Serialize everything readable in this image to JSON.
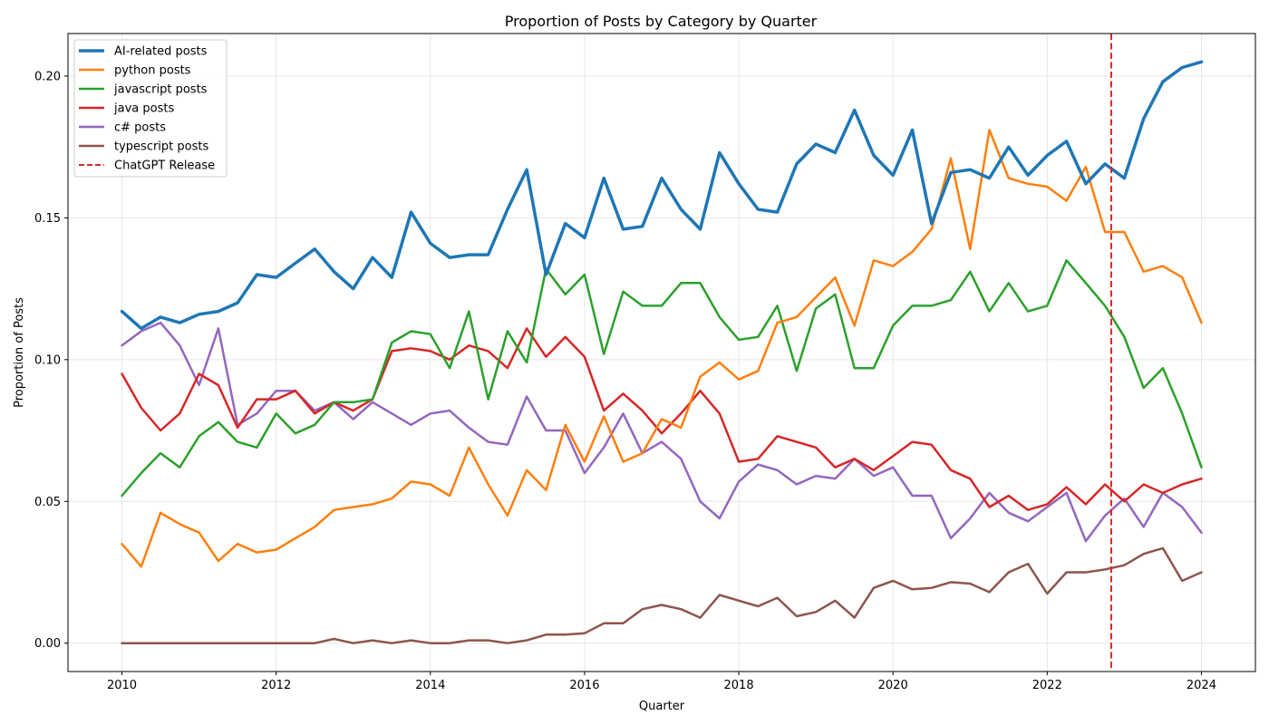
{
  "chart_data": {
    "type": "line",
    "title": "Proportion of Posts by Category by Quarter",
    "xlabel": "Quarter",
    "ylabel": "Proportion of Posts",
    "xlim": [
      2009.3,
      2024.7
    ],
    "ylim": [
      -0.01,
      0.215
    ],
    "x_ticks": [
      2010,
      2012,
      2014,
      2016,
      2018,
      2020,
      2022,
      2024
    ],
    "y_ticks": [
      0.0,
      0.05,
      0.1,
      0.15,
      0.2
    ],
    "y_tick_labels": [
      "0.00",
      "0.05",
      "0.10",
      "0.15",
      "0.20"
    ],
    "grid": true,
    "legend_position": "upper-left",
    "x_start": 2010,
    "x_step": 0.25,
    "series": [
      {
        "name": "AI-related posts",
        "color": "#1f77b4",
        "width": 3.5,
        "values": [
          0.117,
          0.111,
          0.115,
          0.113,
          0.116,
          0.117,
          0.12,
          0.13,
          0.129,
          0.134,
          0.139,
          0.131,
          0.125,
          0.136,
          0.129,
          0.152,
          0.141,
          0.136,
          0.137,
          0.137,
          0.153,
          0.167,
          0.13,
          0.148,
          0.143,
          0.164,
          0.146,
          0.147,
          0.164,
          0.153,
          0.146,
          0.173,
          0.162,
          0.153,
          0.152,
          0.169,
          0.176,
          0.173,
          0.188,
          0.172,
          0.165,
          0.181,
          0.148,
          0.166,
          0.167,
          0.164,
          0.175,
          0.165,
          0.172,
          0.177,
          0.162,
          0.169,
          0.164,
          0.185,
          0.198,
          0.203,
          0.205
        ]
      },
      {
        "name": "python posts",
        "color": "#ff7f0e",
        "width": 2.5,
        "values": [
          0.035,
          0.027,
          0.046,
          0.042,
          0.039,
          0.029,
          0.035,
          0.032,
          0.033,
          0.037,
          0.041,
          0.047,
          0.048,
          0.049,
          0.051,
          0.057,
          0.056,
          0.052,
          0.069,
          0.056,
          0.045,
          0.061,
          0.054,
          0.077,
          0.064,
          0.08,
          0.064,
          0.067,
          0.079,
          0.076,
          0.094,
          0.099,
          0.093,
          0.096,
          0.113,
          0.115,
          0.122,
          0.129,
          0.112,
          0.135,
          0.133,
          0.138,
          0.146,
          0.171,
          0.139,
          0.181,
          0.164,
          0.162,
          0.161,
          0.156,
          0.168,
          0.145,
          0.145,
          0.131,
          0.133,
          0.129,
          0.113
        ]
      },
      {
        "name": "javascript posts",
        "color": "#2ca02c",
        "width": 2.5,
        "values": [
          0.052,
          0.06,
          0.067,
          0.062,
          0.073,
          0.078,
          0.071,
          0.069,
          0.081,
          0.074,
          0.077,
          0.085,
          0.085,
          0.086,
          0.106,
          0.11,
          0.109,
          0.097,
          0.117,
          0.086,
          0.11,
          0.099,
          0.132,
          0.123,
          0.13,
          0.102,
          0.124,
          0.119,
          0.119,
          0.127,
          0.127,
          0.115,
          0.107,
          0.108,
          0.119,
          0.096,
          0.118,
          0.123,
          0.097,
          0.097,
          0.112,
          0.119,
          0.119,
          0.121,
          0.131,
          0.117,
          0.127,
          0.117,
          0.119,
          0.135,
          0.127,
          0.119,
          0.108,
          0.09,
          0.097,
          0.081,
          0.062
        ]
      },
      {
        "name": "java posts",
        "color": "#d62728",
        "width": 2.5,
        "values": [
          0.095,
          0.083,
          0.075,
          0.081,
          0.095,
          0.091,
          0.076,
          0.086,
          0.086,
          0.089,
          0.081,
          0.085,
          0.082,
          0.086,
          0.103,
          0.104,
          0.103,
          0.1,
          0.105,
          0.103,
          0.097,
          0.111,
          0.101,
          0.108,
          0.101,
          0.082,
          0.088,
          0.082,
          0.074,
          0.081,
          0.089,
          0.081,
          0.064,
          0.065,
          0.073,
          0.071,
          0.069,
          0.062,
          0.065,
          0.061,
          0.066,
          0.071,
          0.07,
          0.061,
          0.058,
          0.048,
          0.052,
          0.047,
          0.049,
          0.055,
          0.049,
          0.056,
          0.05,
          0.056,
          0.053,
          0.056,
          0.058
        ]
      },
      {
        "name": "c# posts",
        "color": "#9467bd",
        "width": 2.5,
        "values": [
          0.105,
          0.11,
          0.113,
          0.105,
          0.091,
          0.111,
          0.077,
          0.081,
          0.089,
          0.089,
          0.082,
          0.085,
          0.079,
          0.085,
          0.081,
          0.077,
          0.081,
          0.082,
          0.076,
          0.071,
          0.07,
          0.087,
          0.075,
          0.075,
          0.06,
          0.069,
          0.081,
          0.067,
          0.071,
          0.065,
          0.05,
          0.044,
          0.057,
          0.063,
          0.061,
          0.056,
          0.059,
          0.058,
          0.065,
          0.059,
          0.062,
          0.052,
          0.052,
          0.037,
          0.044,
          0.053,
          0.046,
          0.043,
          0.048,
          0.053,
          0.036,
          0.045,
          0.051,
          0.041,
          0.053,
          0.048,
          0.039
        ]
      },
      {
        "name": "typescript posts",
        "color": "#8c564b",
        "width": 2.5,
        "values": [
          0.0,
          0.0,
          0.0,
          0.0,
          0.0,
          0.0,
          0.0,
          0.0,
          0.0,
          0.0,
          0.0,
          0.0015,
          0.0,
          0.001,
          0.0,
          0.001,
          0.0,
          0.0,
          0.001,
          0.001,
          0.0,
          0.001,
          0.003,
          0.003,
          0.0035,
          0.007,
          0.007,
          0.012,
          0.0135,
          0.012,
          0.009,
          0.017,
          0.015,
          0.013,
          0.016,
          0.0095,
          0.011,
          0.015,
          0.009,
          0.0195,
          0.022,
          0.019,
          0.0195,
          0.0215,
          0.021,
          0.018,
          0.025,
          0.028,
          0.0175,
          0.025,
          0.025,
          0.026,
          0.0275,
          0.0315,
          0.0335,
          0.022,
          0.025
        ]
      }
    ],
    "vline": {
      "name": "ChatGPT Release",
      "x": 2022.83,
      "color": "#d62728"
    }
  }
}
